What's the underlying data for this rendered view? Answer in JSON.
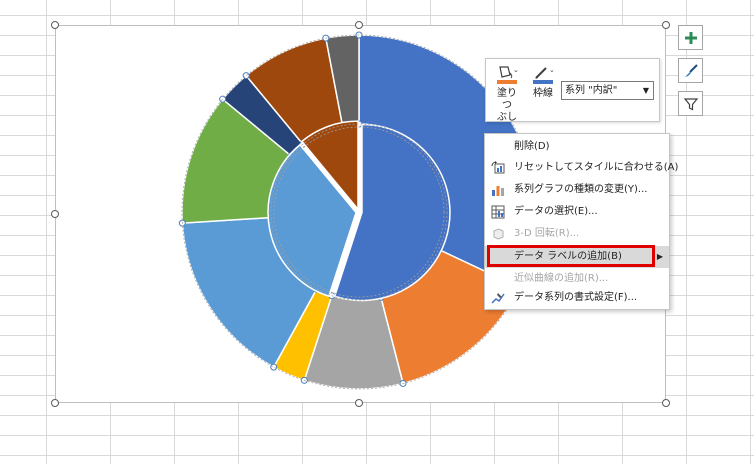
{
  "context_menu": {
    "items": [
      {
        "label": "削除(D)",
        "icon": "none"
      },
      {
        "label": "リセットしてスタイルに合わせる(A)",
        "icon": "reset-style-icon"
      },
      {
        "label": "系列グラフの種類の変更(Y)...",
        "icon": "chart-type-icon"
      },
      {
        "label": "データの選択(E)...",
        "icon": "select-data-icon"
      },
      {
        "label": "3-D 回転(R)...",
        "icon": "rotate-3d-icon",
        "disabled": true
      },
      {
        "label": "データ ラベルの追加(B)",
        "icon": "none",
        "highlighted": true,
        "submenu": true
      },
      {
        "label": "近似曲線の追加(R)...",
        "icon": "none",
        "disabled": true
      },
      {
        "label": "データ系列の書式設定(F)...",
        "icon": "format-series-icon"
      }
    ]
  },
  "mini_toolbar": {
    "fill_label_line1": "塗りつ",
    "fill_label_line2": "ぶし",
    "outline_label": "枠線",
    "series_value": "系列 \"内訳\""
  },
  "side_buttons": [
    "chart-elements-plus-icon",
    "chart-styles-brush-icon",
    "chart-filters-funnel-icon"
  ],
  "chart_data": {
    "type": "pie",
    "subtype": "doughnut",
    "series": [
      {
        "ring": "outer",
        "slices": [
          {
            "value": 32,
            "color": "#4472c4"
          },
          {
            "value": 14,
            "color": "#ed7d31"
          },
          {
            "value": 9,
            "color": "#a5a5a5"
          },
          {
            "value": 3,
            "color": "#ffc000"
          },
          {
            "value": 16,
            "color": "#5b9bd5"
          },
          {
            "value": 12,
            "color": "#70ad47"
          },
          {
            "value": 3,
            "color": "#264478"
          },
          {
            "value": 8,
            "color": "#9e480e"
          },
          {
            "value": 3,
            "color": "#636363"
          }
        ]
      },
      {
        "ring": "inner",
        "slices": [
          {
            "value": 55,
            "color": "#4472c4"
          },
          {
            "value": 34,
            "color": "#5b9bd5"
          },
          {
            "value": 11,
            "color": "#9e480e"
          }
        ]
      }
    ]
  }
}
